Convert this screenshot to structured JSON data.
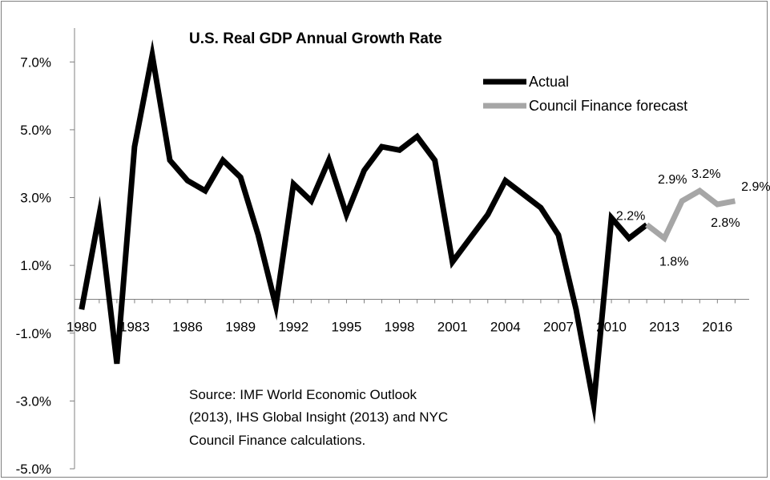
{
  "chart_data": {
    "type": "line",
    "title": "U.S. Real GDP Annual Growth Rate",
    "xlabel": "",
    "ylabel": "",
    "ylim": [
      -5.0,
      8.0
    ],
    "yticks": [
      "7.0%",
      "5.0%",
      "3.0%",
      "1.0%",
      "-1.0%",
      "-3.0%",
      "-5.0%"
    ],
    "ytick_values": [
      7.0,
      5.0,
      3.0,
      1.0,
      -1.0,
      -3.0,
      -5.0
    ],
    "xticks": [
      "1980",
      "1983",
      "1986",
      "1989",
      "1992",
      "1995",
      "1998",
      "2001",
      "2004",
      "2007",
      "2010",
      "2013",
      "2016"
    ],
    "xtick_values": [
      1980,
      1983,
      1986,
      1989,
      1992,
      1995,
      1998,
      2001,
      2004,
      2007,
      2010,
      2013,
      2016
    ],
    "legend_position": "top-right",
    "series": [
      {
        "name": "Actual",
        "color": "#000000",
        "x": [
          1980,
          1981,
          1982,
          1983,
          1984,
          1985,
          1986,
          1987,
          1988,
          1989,
          1990,
          1991,
          1992,
          1993,
          1994,
          1995,
          1996,
          1997,
          1998,
          1999,
          2000,
          2001,
          2002,
          2003,
          2004,
          2005,
          2006,
          2007,
          2008,
          2009,
          2010,
          2011,
          2012
        ],
        "values": [
          -0.3,
          2.5,
          -1.9,
          4.5,
          7.2,
          4.1,
          3.5,
          3.2,
          4.1,
          3.6,
          1.9,
          -0.2,
          3.4,
          2.9,
          4.1,
          2.5,
          3.8,
          4.5,
          4.4,
          4.8,
          4.1,
          1.1,
          1.8,
          2.5,
          3.5,
          3.1,
          2.7,
          1.9,
          -0.3,
          -3.1,
          2.4,
          1.8,
          2.2
        ]
      },
      {
        "name": "Council Finance forecast",
        "color": "#a6a6a6",
        "x": [
          2012,
          2013,
          2014,
          2015,
          2016,
          2017
        ],
        "values": [
          2.2,
          1.8,
          2.9,
          3.2,
          2.8,
          2.9
        ],
        "labels": [
          "2.2%",
          "1.8%",
          "2.9%",
          "3.2%",
          "2.8%",
          "2.9%"
        ]
      }
    ],
    "annotation": {
      "lines": [
        "Source: IMF World Economic Outlook",
        "(2013), IHS Global Insight (2013) and NYC",
        "Council Finance calculations."
      ]
    }
  }
}
